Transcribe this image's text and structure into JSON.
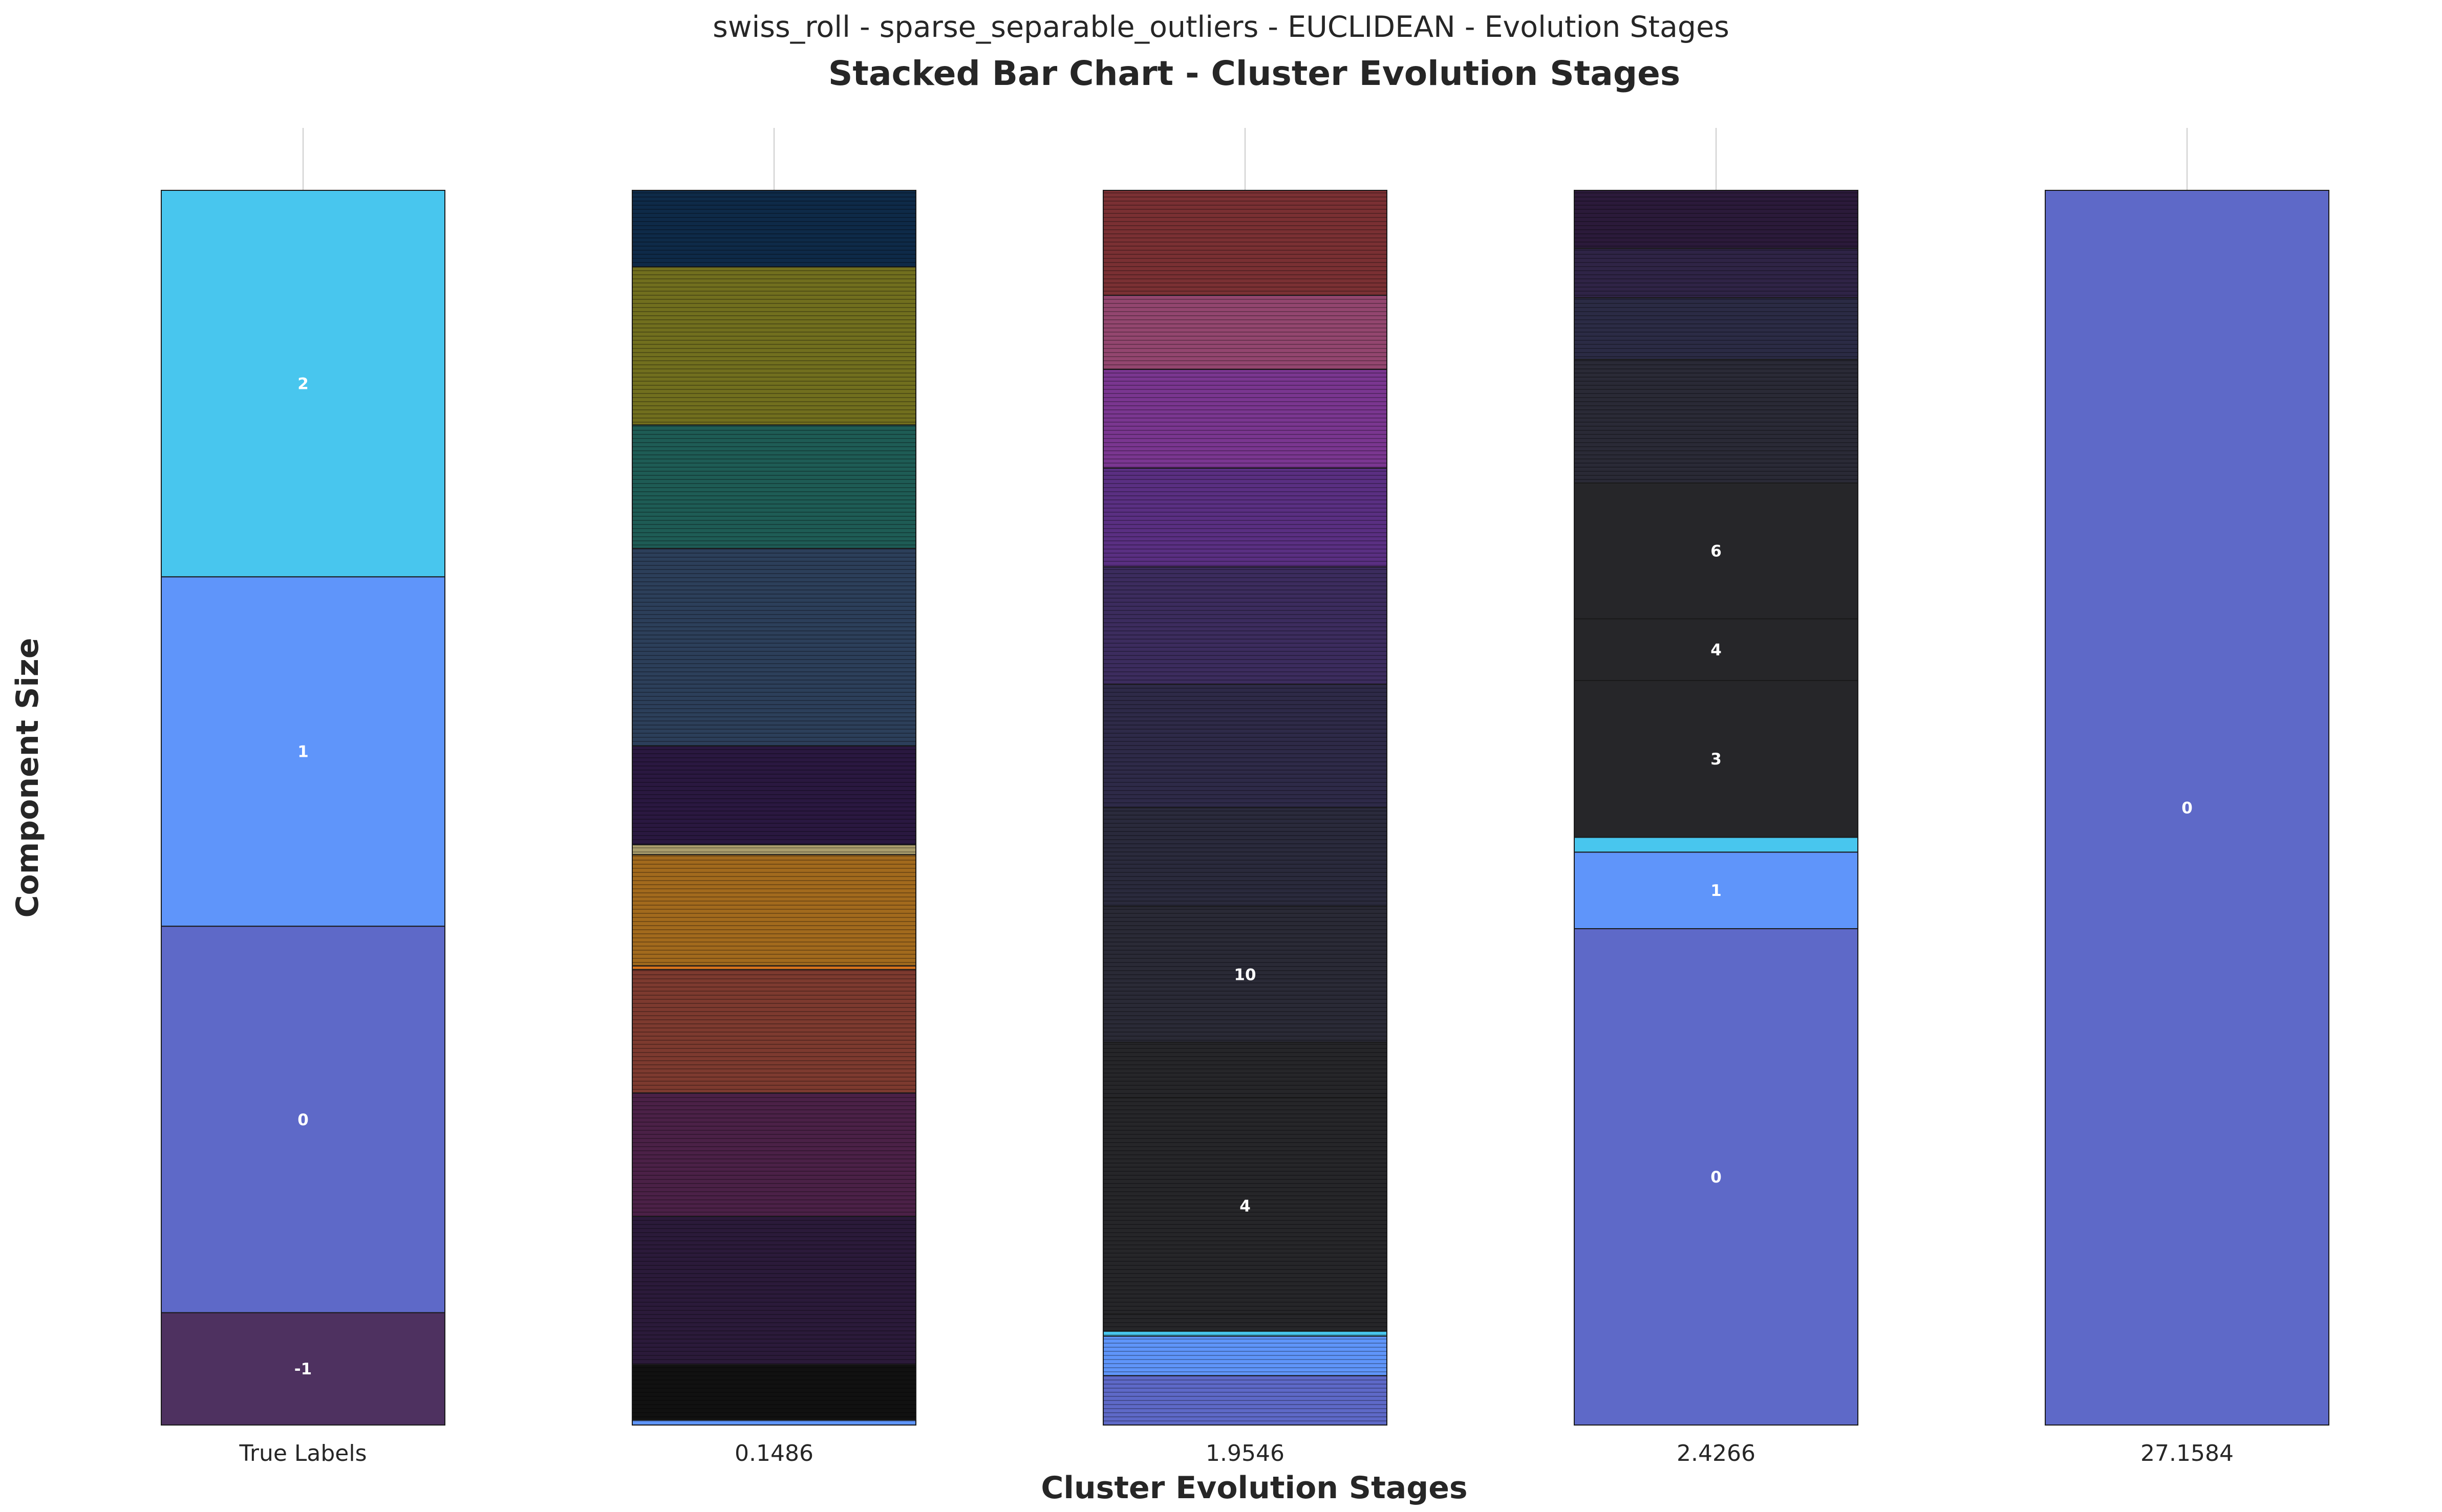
{
  "chart_data": {
    "type": "bar",
    "stacked": true,
    "suptitle": "swiss_roll - sparse_separable_outliers - EUCLIDEAN - Evolution Stages",
    "title": "Stacked Bar Chart - Cluster Evolution Stages",
    "xlabel": "Cluster Evolution Stages",
    "ylabel": "Component Size",
    "categories": [
      "True Labels",
      "0.1486",
      "1.9546",
      "2.4266",
      "27.1584"
    ],
    "ylim": [
      0,
      1
    ],
    "grid": true,
    "legend": "none",
    "stacks": [
      {
        "category": "True Labels",
        "segments": [
          {
            "label": "-1",
            "size": 0.091,
            "color": "#4e3160"
          },
          {
            "label": "0",
            "size": 0.313,
            "color": "#5e69c8"
          },
          {
            "label": "1",
            "size": 0.283,
            "color": "#5f95fa"
          },
          {
            "label": "2",
            "size": 0.313,
            "color": "#48c6ee"
          }
        ]
      },
      {
        "category": "0.1486",
        "striped": true,
        "segments": [
          {
            "label": "",
            "size": 0.004,
            "color": "#5f95fa"
          },
          {
            "label": "",
            "size": 0.045,
            "color": "#111111"
          },
          {
            "label": "",
            "size": 0.12,
            "color": "#2b1a3a"
          },
          {
            "label": "",
            "size": 0.1,
            "color": "#4b2147"
          },
          {
            "label": "",
            "size": 0.1,
            "color": "#7d3a2f"
          },
          {
            "label": "",
            "size": 0.003,
            "color": "#e0781d"
          },
          {
            "label": "",
            "size": 0.09,
            "color": "#a26a1d"
          },
          {
            "label": "",
            "size": 0.008,
            "color": "#a99c6c"
          },
          {
            "label": "",
            "size": 0.08,
            "color": "#2a1840"
          },
          {
            "label": "",
            "size": 0.16,
            "color": "#2c3f5a"
          },
          {
            "label": "",
            "size": 0.1,
            "color": "#1e5c55"
          },
          {
            "label": "",
            "size": 0.128,
            "color": "#716f1e"
          },
          {
            "label": "",
            "size": 0.062,
            "color": "#0e2a48"
          }
        ]
      },
      {
        "category": "1.9546",
        "striped": true,
        "segments": [
          {
            "label": "",
            "size": 0.04,
            "color": "#5e69c8"
          },
          {
            "label": "",
            "size": 0.032,
            "color": "#5f95fa"
          },
          {
            "label": "",
            "size": 0.004,
            "color": "#48c6ee"
          },
          {
            "label": "",
            "size": 0.014,
            "color": "#262629"
          },
          {
            "label": "4",
            "size": 0.175,
            "color": "#262629"
          },
          {
            "label": "",
            "size": 0.045,
            "color": "#262629"
          },
          {
            "label": "10",
            "size": 0.11,
            "color": "#2a2a36"
          },
          {
            "label": "",
            "size": 0.08,
            "color": "#2a2a3c"
          },
          {
            "label": "",
            "size": 0.1,
            "color": "#2e2a48"
          },
          {
            "label": "",
            "size": 0.095,
            "color": "#3c2c5e"
          },
          {
            "label": "",
            "size": 0.08,
            "color": "#5a2f82"
          },
          {
            "label": "",
            "size": 0.08,
            "color": "#7a3690"
          },
          {
            "label": "",
            "size": 0.06,
            "color": "#93466f"
          },
          {
            "label": "",
            "size": 0.085,
            "color": "#7a3033"
          }
        ]
      },
      {
        "category": "2.4266",
        "segments": [
          {
            "label": "0",
            "size": 0.402,
            "color": "#5e69c8"
          },
          {
            "label": "1",
            "size": 0.062,
            "color": "#5f95fa"
          },
          {
            "label": "",
            "size": 0.012,
            "color": "#48c6ee"
          },
          {
            "label": "3",
            "size": 0.127,
            "color": "#262629"
          },
          {
            "label": "4",
            "size": 0.05,
            "color": "#262629"
          },
          {
            "label": "6",
            "size": 0.11,
            "color": "#262629"
          },
          {
            "label": "",
            "size": 0.1,
            "color": "#2a2a36",
            "striped": true
          },
          {
            "label": "",
            "size": 0.05,
            "color": "#2b2b45",
            "striped": true
          },
          {
            "label": "",
            "size": 0.04,
            "color": "#2f2446",
            "striped": true
          },
          {
            "label": "",
            "size": 0.047,
            "color": "#2b1a3a",
            "striped": true
          }
        ]
      },
      {
        "category": "27.1584",
        "segments": [
          {
            "label": "0",
            "size": 1.0,
            "color": "#5e69c8"
          }
        ]
      }
    ]
  }
}
